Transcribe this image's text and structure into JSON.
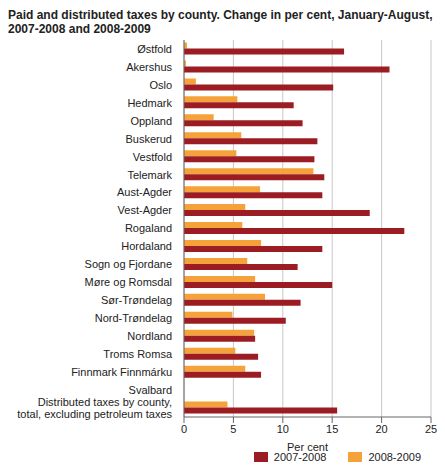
{
  "chart_data": {
    "type": "bar",
    "title": "Paid and distributed taxes by county. Change in per cent, January-August, 2007-2008 and 2008-2009",
    "orientation": "horizontal",
    "categories": [
      "Østfold",
      "Akershus",
      "Oslo",
      "Hedmark",
      "Oppland",
      "Buskerud",
      "Vestfold",
      "Telemark",
      "Aust-Agder",
      "Vest-Agder",
      "Rogaland",
      "Hordaland",
      "Sogn og Fjordane",
      "Møre og Romsdal",
      "Sør-Trøndelag",
      "Nord-Trøndelag",
      "Nordland",
      "Troms Romsa",
      "Finnmark Finnmárku",
      "Svalbard",
      "Distributed taxes by county, total, excluding petroleum taxes"
    ],
    "series": [
      {
        "name": "2007-2008",
        "color": "#9b1c22",
        "values": [
          16.2,
          20.8,
          15.1,
          11.1,
          12.0,
          13.5,
          13.2,
          14.2,
          14.0,
          18.8,
          22.3,
          14.0,
          11.5,
          15.0,
          11.8,
          10.3,
          7.2,
          7.5,
          7.8,
          0,
          15.5
        ]
      },
      {
        "name": "2008-2009",
        "color": "#f5a23a",
        "values": [
          0.3,
          0.2,
          1.2,
          5.4,
          3.0,
          5.8,
          5.3,
          13.1,
          7.7,
          6.2,
          5.9,
          7.8,
          6.4,
          7.2,
          8.2,
          4.9,
          7.1,
          5.2,
          6.2,
          0,
          4.4
        ]
      }
    ],
    "xlabel": "Per cent",
    "xlim": [
      0,
      25
    ],
    "xticks": [
      0,
      5,
      10,
      15,
      20,
      25
    ],
    "grid": true,
    "legend": "bottom"
  }
}
